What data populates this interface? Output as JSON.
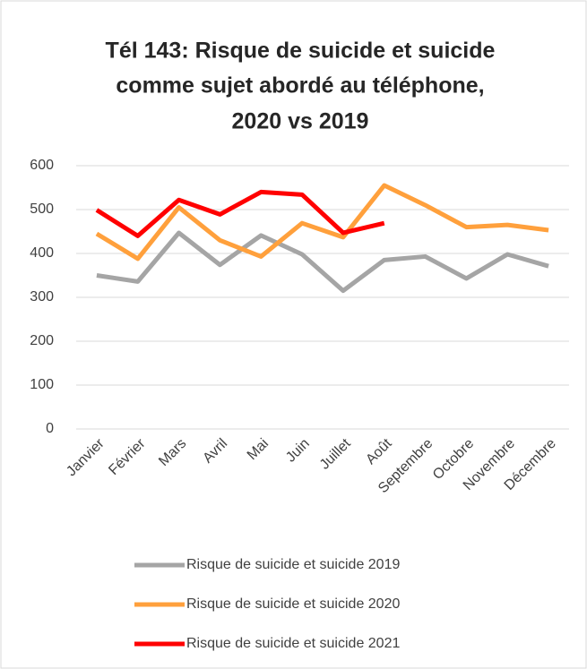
{
  "chart_data": {
    "type": "line",
    "title": [
      "Tél 143:  Risque de suicide et suicide",
      "comme sujet abordé au téléphone,",
      "2020 vs 2019"
    ],
    "categories": [
      "Janvier",
      "Février",
      "Mars",
      "Avril",
      "Mai",
      "Juin",
      "Juillet",
      "Août",
      "Septembre",
      "Octobre",
      "Novembre",
      "Décembre"
    ],
    "series": [
      {
        "name": "Risque de suicide et suicide 2019",
        "color": "#a5a5a5",
        "values": [
          350,
          336,
          447,
          374,
          441,
          398,
          315,
          385,
          393,
          343,
          398,
          371
        ]
      },
      {
        "name": "Risque de suicide et suicide 2020",
        "color": "#ffa03c",
        "values": [
          445,
          388,
          505,
          430,
          393,
          469,
          437,
          555,
          510,
          460,
          465,
          453
        ]
      },
      {
        "name": "Risque de suicide et suicide 2021",
        "color": "#ff0000",
        "values": [
          499,
          440,
          522,
          489,
          540,
          534,
          447,
          469,
          null,
          null,
          null,
          null
        ]
      }
    ],
    "ylim": [
      0,
      600
    ],
    "yticks": [
      0,
      100,
      200,
      300,
      400,
      500,
      600
    ],
    "grid": true,
    "legend": "bottom"
  }
}
